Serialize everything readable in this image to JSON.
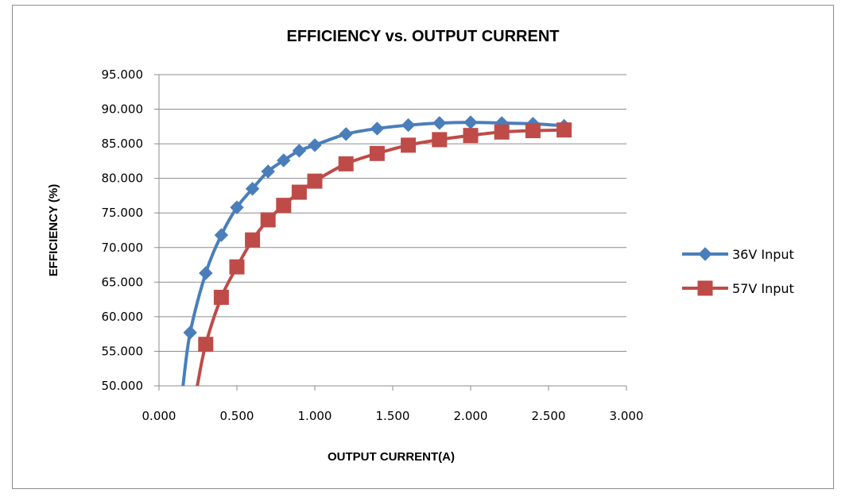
{
  "chart_data": {
    "type": "line",
    "title": "EFFICIENCY vs. OUTPUT CURRENT",
    "xlabel": "OUTPUT CURRENT(A)",
    "ylabel": "EFFICIENCY (%)",
    "xlim": [
      0,
      3
    ],
    "ylim": [
      50,
      95
    ],
    "x_ticks": [
      "0.000",
      "0.500",
      "1.000",
      "1.500",
      "2.000",
      "2.500",
      "3.000"
    ],
    "y_ticks": [
      "50.000",
      "55.000",
      "60.000",
      "65.000",
      "70.000",
      "75.000",
      "80.000",
      "85.000",
      "90.000",
      "95.000"
    ],
    "grid": "horizontal",
    "legend": "right",
    "series": [
      {
        "name": "36V Input",
        "color": "#4a7ebb",
        "marker": "diamond",
        "x": [
          0.2,
          0.3,
          0.4,
          0.5,
          0.6,
          0.7,
          0.8,
          0.9,
          1.0,
          1.2,
          1.4,
          1.6,
          1.8,
          2.0,
          2.2,
          2.4,
          2.6
        ],
        "y": [
          57.7,
          66.3,
          71.8,
          75.8,
          78.5,
          81.0,
          82.6,
          84.0,
          84.8,
          86.4,
          87.2,
          87.7,
          88.0,
          88.1,
          88.0,
          87.9,
          87.6
        ]
      },
      {
        "name": "57V Input",
        "color": "#be4b48",
        "marker": "square",
        "x": [
          0.3,
          0.4,
          0.5,
          0.6,
          0.7,
          0.8,
          0.9,
          1.0,
          1.2,
          1.4,
          1.6,
          1.8,
          2.0,
          2.2,
          2.4,
          2.6
        ],
        "y": [
          56.0,
          62.8,
          67.2,
          71.1,
          74.0,
          76.1,
          78.0,
          79.6,
          82.1,
          83.6,
          84.8,
          85.6,
          86.2,
          86.7,
          86.9,
          87.0
        ]
      }
    ]
  }
}
